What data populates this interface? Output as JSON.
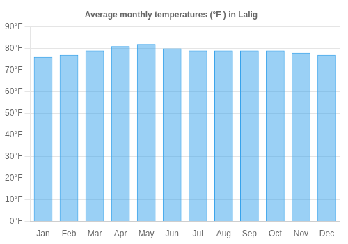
{
  "chart_data": {
    "type": "bar",
    "title": "Average monthly temperatures (°F ) in Lalig",
    "categories": [
      "Jan",
      "Feb",
      "Mar",
      "Apr",
      "May",
      "Jun",
      "Jul",
      "Aug",
      "Sep",
      "Oct",
      "Nov",
      "Dec"
    ],
    "values": [
      76,
      77,
      79,
      81,
      82,
      80,
      79,
      79,
      79,
      79,
      78,
      77
    ],
    "ylim": [
      0,
      90
    ],
    "yticks": [
      {
        "value": 0,
        "label": "0°F"
      },
      {
        "value": 10,
        "label": "10°F"
      },
      {
        "value": 20,
        "label": "20°F"
      },
      {
        "value": 30,
        "label": "30°F"
      },
      {
        "value": 40,
        "label": "40°F"
      },
      {
        "value": 50,
        "label": "50°F"
      },
      {
        "value": 60,
        "label": "60°F"
      },
      {
        "value": 70,
        "label": "70°F"
      },
      {
        "value": 80,
        "label": "80°F"
      },
      {
        "value": 90,
        "label": "90°F"
      }
    ],
    "grid": true
  }
}
